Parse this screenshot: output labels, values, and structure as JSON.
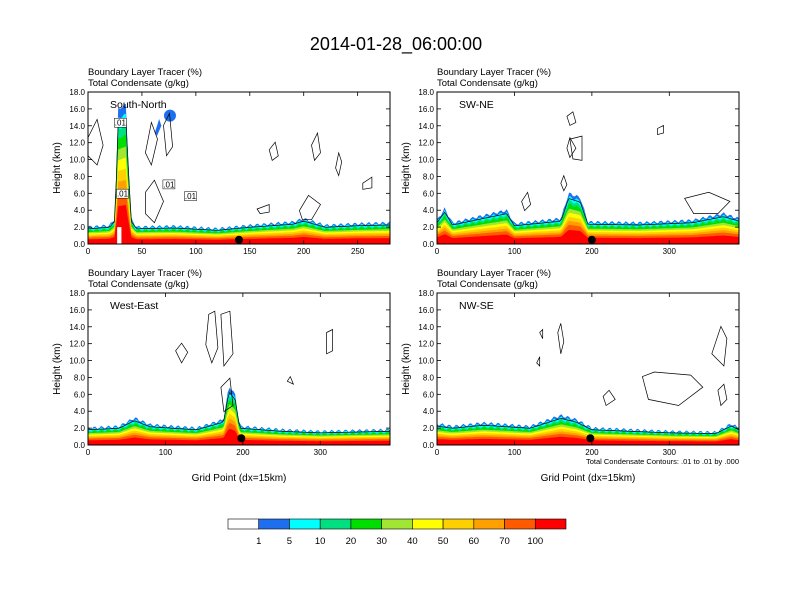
{
  "title": "2014-01-28_06:00:00",
  "headers": {
    "line1": "Boundary Layer Tracer   (%)",
    "line2": "Total Condensate   (g/kg)"
  },
  "axes": {
    "ylabel": "Height (km)",
    "xlabel": "Grid Point (dx=15km)",
    "yticks": [
      "0.0",
      "2.0",
      "4.0",
      "6.0",
      "8.0",
      "10.0",
      "12.0",
      "14.0",
      "16.0",
      "18.0"
    ]
  },
  "contour_note": "Total Condensate Contours: .01 to .01 by .000",
  "contour_labels": [
    ".01",
    ".01",
    ".01",
    ".01"
  ],
  "colors": {
    "levels": [
      "#ffffff",
      "#1e6ff0",
      "#00ffff",
      "#00e080",
      "#00dd00",
      "#a0e632",
      "#ffff00",
      "#ffd000",
      "#ffa000",
      "#ff5a00",
      "#ff0000"
    ],
    "contour": "#000000"
  },
  "colorbar": {
    "labels": [
      "1",
      "5",
      "10",
      "20",
      "30",
      "40",
      "50",
      "60",
      "70",
      "100"
    ]
  },
  "chart_data": [
    {
      "type": "heatmap",
      "panel": "South-North",
      "label": "South-North",
      "xlim": [
        0,
        280
      ],
      "xticks": [
        0,
        50,
        100,
        150,
        200,
        250
      ],
      "ylim": [
        0,
        18
      ],
      "ystep": 2,
      "tracer_layer_top_km": [
        [
          0,
          2.0
        ],
        [
          20,
          2.2
        ],
        [
          25,
          3.0
        ],
        [
          28,
          16.0
        ],
        [
          35,
          16.5
        ],
        [
          40,
          3.0
        ],
        [
          45,
          2.0
        ],
        [
          80,
          2.1
        ],
        [
          120,
          1.8
        ],
        [
          150,
          2.2
        ],
        [
          190,
          2.6
        ],
        [
          200,
          3.0
        ],
        [
          220,
          2.2
        ],
        [
          250,
          2.4
        ],
        [
          280,
          2.5
        ]
      ],
      "marker": {
        "x": 140,
        "y": 0.5
      }
    },
    {
      "type": "heatmap",
      "panel": "SW-NE",
      "label": "SW-NE",
      "xlim": [
        0,
        390
      ],
      "xticks": [
        0,
        100,
        200,
        300
      ],
      "ylim": [
        0,
        18
      ],
      "ystep": 2,
      "tracer_layer_top_km": [
        [
          0,
          2.8
        ],
        [
          10,
          4.2
        ],
        [
          20,
          2.5
        ],
        [
          90,
          4.0
        ],
        [
          100,
          2.4
        ],
        [
          160,
          3.0
        ],
        [
          170,
          6.0
        ],
        [
          185,
          5.5
        ],
        [
          195,
          2.6
        ],
        [
          260,
          2.5
        ],
        [
          330,
          2.8
        ],
        [
          370,
          3.6
        ],
        [
          390,
          3.0
        ]
      ],
      "marker": {
        "x": 200,
        "y": 0.5
      }
    },
    {
      "type": "heatmap",
      "panel": "West-East",
      "label": "West-East",
      "xlim": [
        0,
        390
      ],
      "xticks": [
        0,
        100,
        200,
        300
      ],
      "ylim": [
        0,
        18
      ],
      "ystep": 2,
      "tracer_layer_top_km": [
        [
          0,
          2.0
        ],
        [
          40,
          2.2
        ],
        [
          60,
          3.2
        ],
        [
          80,
          2.4
        ],
        [
          140,
          2.0
        ],
        [
          175,
          3.0
        ],
        [
          182,
          7.0
        ],
        [
          190,
          6.0
        ],
        [
          196,
          2.2
        ],
        [
          250,
          1.8
        ],
        [
          300,
          1.6
        ],
        [
          390,
          1.8
        ]
      ],
      "marker": {
        "x": 198,
        "y": 0.8
      }
    },
    {
      "type": "heatmap",
      "panel": "NW-SE",
      "label": "NW-SE",
      "xlim": [
        0,
        390
      ],
      "xticks": [
        0,
        100,
        200,
        300
      ],
      "ylim": [
        0,
        18
      ],
      "ystep": 2,
      "tracer_layer_top_km": [
        [
          0,
          2.5
        ],
        [
          20,
          2.2
        ],
        [
          60,
          2.6
        ],
        [
          120,
          2.2
        ],
        [
          160,
          3.5
        ],
        [
          180,
          3.0
        ],
        [
          200,
          2.0
        ],
        [
          250,
          1.8
        ],
        [
          300,
          1.6
        ],
        [
          360,
          1.5
        ],
        [
          380,
          2.5
        ],
        [
          390,
          2.0
        ]
      ],
      "marker": {
        "x": 198,
        "y": 0.8
      }
    }
  ]
}
